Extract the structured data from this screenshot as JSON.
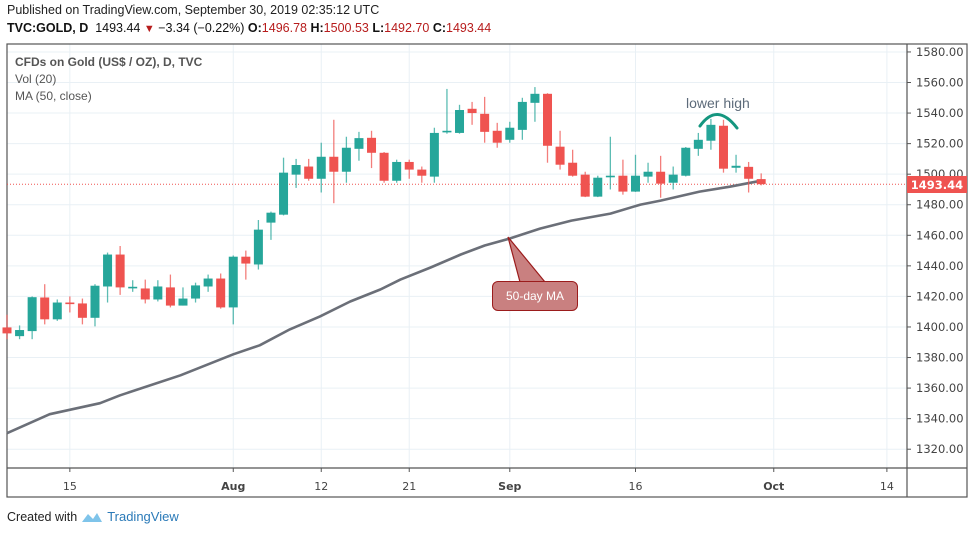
{
  "header": {
    "published": "Published on TradingView.com, September 30, 2019 02:35:12 UTC",
    "symbol": "TVC:GOLD, D",
    "last": "1493.44",
    "change": "−3.34 (−0.22%)",
    "o_label": "O:",
    "o": "1496.78",
    "h_label": "H:",
    "h": "1500.53",
    "l_label": "L:",
    "l": "1492.70",
    "c_label": "C:",
    "c": "1493.44"
  },
  "legend": {
    "title": "CFDs on Gold (US$ / OZ), D, TVC",
    "vol": "Vol (20)",
    "ma": "MA (50, close)"
  },
  "annotations": {
    "lower_high": "lower high",
    "ma_callout": "50-day MA"
  },
  "footer": {
    "created_with": "Created with",
    "brand": "TradingView"
  },
  "colors": {
    "up": "#26a69a",
    "down": "#ef5350",
    "ma": "#6b6f78",
    "grid": "#e9f0f5",
    "last_price": "#ef5350"
  },
  "chart_data": {
    "type": "candlestick",
    "title": "CFDs on Gold (US$ / OZ), D, TVC",
    "ylim": [
      1307.7,
      1585.2
    ],
    "x_index_range": [
      0,
      71.6
    ],
    "y_ticks": [
      "1580.00",
      "1560.00",
      "1540.00",
      "1520.00",
      "1500.00",
      "1480.00",
      "1460.00",
      "1440.00",
      "1420.00",
      "1400.00",
      "1380.00",
      "1360.00",
      "1340.00",
      "1320.00"
    ],
    "x_ticks": [
      {
        "label": "15",
        "index": 5,
        "bold": false
      },
      {
        "label": "Aug",
        "index": 18,
        "bold": true
      },
      {
        "label": "12",
        "index": 25,
        "bold": false
      },
      {
        "label": "21",
        "index": 32,
        "bold": false
      },
      {
        "label": "Sep",
        "index": 40,
        "bold": true
      },
      {
        "label": "16",
        "index": 50,
        "bold": false
      },
      {
        "label": "Oct",
        "index": 61,
        "bold": true
      },
      {
        "label": "14",
        "index": 70,
        "bold": false
      }
    ],
    "last_price": "1493.44",
    "ohlc": [
      [
        1399.7,
        1408,
        1392,
        1395.8
      ],
      [
        1394,
        1401,
        1392,
        1398
      ],
      [
        1397.3,
        1420,
        1392,
        1419.5
      ],
      [
        1419.3,
        1428,
        1401.7,
        1405
      ],
      [
        1405,
        1418,
        1404,
        1416
      ],
      [
        1416,
        1420,
        1409.5,
        1415.5
      ],
      [
        1415.4,
        1418.6,
        1401.7,
        1406
      ],
      [
        1406,
        1428,
        1400.4,
        1427
      ],
      [
        1426.5,
        1448.7,
        1416,
        1447.4
      ],
      [
        1447.4,
        1453,
        1421,
        1425.9
      ],
      [
        1426,
        1430.6,
        1423,
        1426.3
      ],
      [
        1425.2,
        1431,
        1415.4,
        1418
      ],
      [
        1418,
        1430.6,
        1416.7,
        1426.5
      ],
      [
        1425.9,
        1434.3,
        1412.8,
        1414
      ],
      [
        1414,
        1425.9,
        1414,
        1418.6
      ],
      [
        1418.6,
        1429,
        1416,
        1427.2
      ],
      [
        1426.5,
        1434.3,
        1423,
        1431.7
      ],
      [
        1431.7,
        1435,
        1412,
        1412.8
      ],
      [
        1412.8,
        1446.8,
        1401.7,
        1446
      ],
      [
        1446,
        1450,
        1431,
        1441.5
      ],
      [
        1440.9,
        1470,
        1437.6,
        1463.7
      ],
      [
        1468.3,
        1475.5,
        1457,
        1474.8
      ],
      [
        1473.5,
        1510.8,
        1473,
        1501
      ],
      [
        1499.7,
        1510,
        1491,
        1506
      ],
      [
        1505,
        1510,
        1495.7,
        1497
      ],
      [
        1497,
        1520.6,
        1488,
        1511.4
      ],
      [
        1511.4,
        1535.6,
        1481,
        1501.6
      ],
      [
        1501.6,
        1524.5,
        1494.4,
        1517.3
      ],
      [
        1516.6,
        1527.7,
        1508.8,
        1523.6
      ],
      [
        1523.8,
        1528.4,
        1504,
        1514
      ],
      [
        1514,
        1514.5,
        1494.4,
        1495.7
      ],
      [
        1495.7,
        1509.5,
        1494.4,
        1508
      ],
      [
        1508,
        1509.5,
        1497,
        1503
      ],
      [
        1503,
        1505,
        1494.4,
        1499
      ],
      [
        1498.4,
        1530.4,
        1494.4,
        1527
      ],
      [
        1527.7,
        1555.8,
        1526.5,
        1528.4
      ],
      [
        1527,
        1545.4,
        1526.5,
        1542
      ],
      [
        1542.8,
        1547.3,
        1532.3,
        1540
      ],
      [
        1539.5,
        1550.6,
        1520.6,
        1527.7
      ],
      [
        1528.4,
        1533.6,
        1517.3,
        1520.6
      ],
      [
        1522.5,
        1534.3,
        1520.6,
        1530.4
      ],
      [
        1529,
        1550,
        1522.5,
        1547.3
      ],
      [
        1546.7,
        1557,
        1534.3,
        1552.6
      ],
      [
        1552.6,
        1553,
        1507.5,
        1518.6
      ],
      [
        1518,
        1528.4,
        1503,
        1506.2
      ],
      [
        1507.5,
        1516,
        1498.4,
        1499
      ],
      [
        1499.7,
        1501.6,
        1485,
        1485.3
      ],
      [
        1485.3,
        1499,
        1485,
        1497.7
      ],
      [
        1498.4,
        1524.5,
        1490,
        1499
      ],
      [
        1499,
        1509.5,
        1486.6,
        1488.6
      ],
      [
        1488.6,
        1512.7,
        1488.4,
        1499
      ],
      [
        1498.4,
        1507.5,
        1494.4,
        1501.6
      ],
      [
        1501.6,
        1512,
        1484.6,
        1493.8
      ],
      [
        1494.4,
        1505,
        1490,
        1499.7
      ],
      [
        1499,
        1517.8,
        1498.5,
        1517.3
      ],
      [
        1516.6,
        1527,
        1512,
        1522.5
      ],
      [
        1521.9,
        1536.2,
        1516,
        1532.3
      ],
      [
        1531.7,
        1535.6,
        1501,
        1503.6
      ],
      [
        1504.2,
        1512.7,
        1501,
        1505.5
      ],
      [
        1504.8,
        1508,
        1488,
        1497
      ],
      [
        1496.78,
        1500.53,
        1492.7,
        1493.44
      ]
    ],
    "ma50_points": [
      [
        0,
        1330.5
      ],
      [
        3.4,
        1342.9
      ],
      [
        7.4,
        1350.1
      ],
      [
        9,
        1355.3
      ],
      [
        13.8,
        1368.4
      ],
      [
        18,
        1382.1
      ],
      [
        20.1,
        1388
      ],
      [
        22.5,
        1398.4
      ],
      [
        24.9,
        1406.9
      ],
      [
        27.3,
        1416.7
      ],
      [
        29.7,
        1424.5
      ],
      [
        31.3,
        1431
      ],
      [
        33.7,
        1438.9
      ],
      [
        36.1,
        1447.4
      ],
      [
        38,
        1453.3
      ],
      [
        40,
        1457.9
      ],
      [
        42.4,
        1464.4
      ],
      [
        44.9,
        1469.6
      ],
      [
        48,
        1474.2
      ],
      [
        50.4,
        1480.1
      ],
      [
        52,
        1482.7
      ],
      [
        55.1,
        1488.6
      ],
      [
        57.5,
        1491.8
      ],
      [
        60,
        1495.7
      ]
    ]
  }
}
